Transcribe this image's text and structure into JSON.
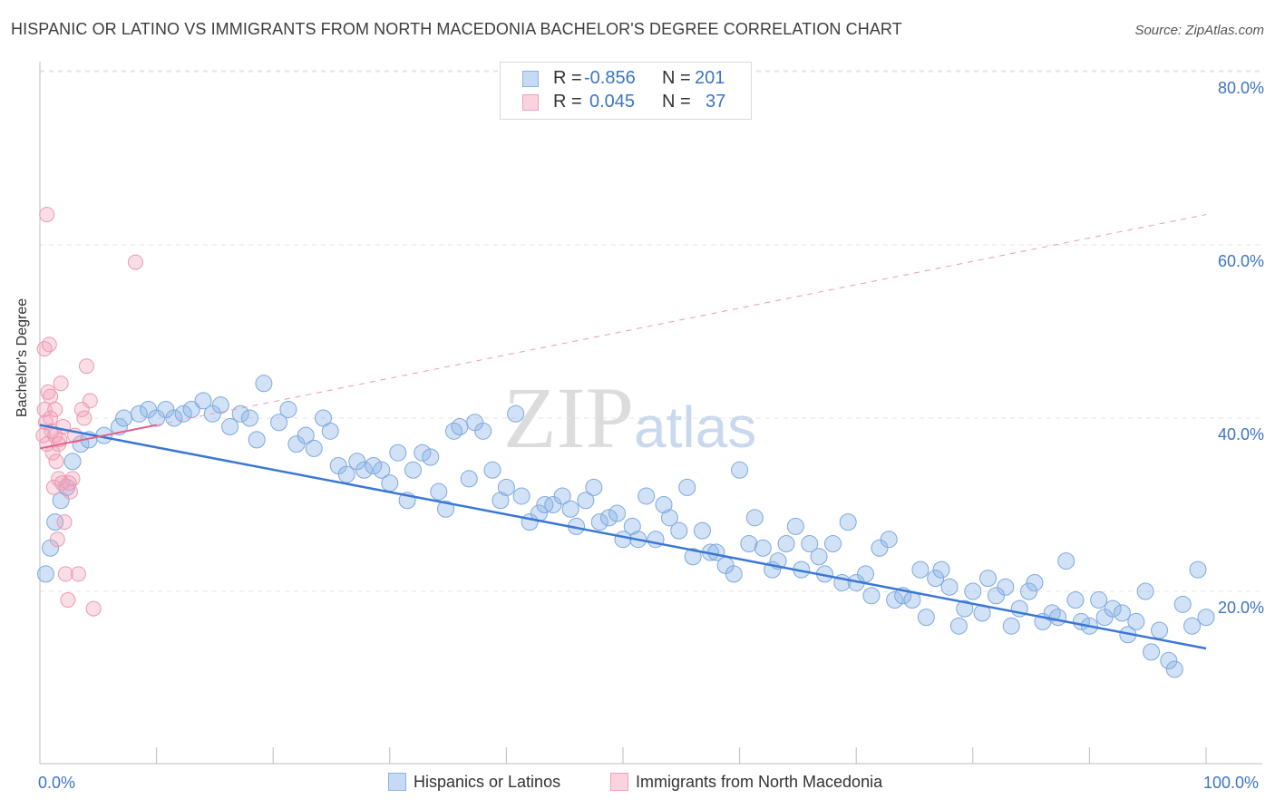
{
  "title": "HISPANIC OR LATINO VS IMMIGRANTS FROM NORTH MACEDONIA BACHELOR'S DEGREE CORRELATION CHART",
  "source": "Source: ZipAtlas.com",
  "watermark": {
    "zip": "ZIP",
    "atlas": "atlas"
  },
  "stats_legend": [
    {
      "r_label": "R =",
      "r_value": "-0.856",
      "n_label": "N =",
      "n_value": "201",
      "color": "#8ab4e8"
    },
    {
      "r_label": "R =",
      "r_value": "0.045",
      "n_label": "N =",
      "n_value": "37",
      "color": "#f2a0b8"
    }
  ],
  "chart_data": {
    "type": "scatter",
    "title": "HISPANIC OR LATINO VS IMMIGRANTS FROM NORTH MACEDONIA BACHELOR'S DEGREE CORRELATION CHART",
    "xlabel": "",
    "ylabel": "Bachelor's Degree",
    "xlim": [
      0,
      100
    ],
    "ylim": [
      0,
      85
    ],
    "x_tick_labels": [
      "0.0%",
      "100.0%"
    ],
    "y_tick_labels": [
      "20.0%",
      "40.0%",
      "60.0%",
      "80.0%"
    ],
    "y_ticks": [
      20,
      40,
      60,
      80
    ],
    "grid": true,
    "legend_position": "bottom",
    "series": [
      {
        "name": "Hispanics or Latinos",
        "color": "#8ab4e8",
        "trend": {
          "x": [
            0,
            100
          ],
          "y": [
            39.2,
            13.4
          ]
        },
        "points": [
          [
            0.5,
            22.0
          ],
          [
            0.9,
            25.0
          ],
          [
            1.3,
            28.0
          ],
          [
            1.8,
            30.5
          ],
          [
            2.3,
            32.0
          ],
          [
            2.8,
            35.0
          ],
          [
            3.5,
            37.0
          ],
          [
            4.2,
            37.5
          ],
          [
            5.5,
            38.0
          ],
          [
            6.8,
            39.0
          ],
          [
            7.2,
            40.0
          ],
          [
            8.5,
            40.5
          ],
          [
            9.3,
            41.0
          ],
          [
            10.0,
            40.0
          ],
          [
            10.8,
            41.0
          ],
          [
            11.5,
            40.0
          ],
          [
            12.3,
            40.5
          ],
          [
            13.0,
            41.0
          ],
          [
            14.0,
            42.0
          ],
          [
            14.8,
            40.5
          ],
          [
            15.5,
            41.5
          ],
          [
            16.3,
            39.0
          ],
          [
            17.2,
            40.5
          ],
          [
            18.0,
            40.0
          ],
          [
            18.6,
            37.5
          ],
          [
            19.2,
            44.0
          ],
          [
            20.5,
            39.5
          ],
          [
            21.3,
            41.0
          ],
          [
            22.0,
            37.0
          ],
          [
            22.8,
            38.0
          ],
          [
            23.5,
            36.5
          ],
          [
            24.3,
            40.0
          ],
          [
            24.9,
            38.5
          ],
          [
            25.6,
            34.5
          ],
          [
            26.3,
            33.5
          ],
          [
            27.2,
            35.0
          ],
          [
            27.8,
            34.0
          ],
          [
            28.6,
            34.5
          ],
          [
            29.3,
            34.0
          ],
          [
            30.0,
            32.5
          ],
          [
            30.7,
            36.0
          ],
          [
            31.5,
            30.5
          ],
          [
            32.0,
            34.0
          ],
          [
            32.8,
            36.0
          ],
          [
            33.5,
            35.5
          ],
          [
            34.2,
            31.5
          ],
          [
            34.8,
            29.5
          ],
          [
            35.5,
            38.5
          ],
          [
            36.0,
            39.0
          ],
          [
            36.8,
            33.0
          ],
          [
            37.3,
            39.5
          ],
          [
            38.0,
            38.5
          ],
          [
            38.8,
            34.0
          ],
          [
            39.5,
            30.5
          ],
          [
            40.0,
            32.0
          ],
          [
            40.8,
            40.5
          ],
          [
            41.3,
            31.0
          ],
          [
            42.0,
            28.0
          ],
          [
            42.8,
            29.0
          ],
          [
            43.3,
            30.0
          ],
          [
            44.0,
            30.0
          ],
          [
            44.8,
            31.0
          ],
          [
            45.5,
            29.5
          ],
          [
            46.0,
            27.5
          ],
          [
            46.8,
            30.5
          ],
          [
            47.5,
            32.0
          ],
          [
            48.0,
            28.0
          ],
          [
            48.8,
            28.5
          ],
          [
            49.5,
            29.0
          ],
          [
            50.0,
            26.0
          ],
          [
            50.8,
            27.5
          ],
          [
            51.3,
            26.0
          ],
          [
            52.0,
            31.0
          ],
          [
            52.8,
            26.0
          ],
          [
            53.5,
            30.0
          ],
          [
            54.0,
            28.5
          ],
          [
            54.8,
            27.0
          ],
          [
            55.5,
            32.0
          ],
          [
            56.0,
            24.0
          ],
          [
            56.8,
            27.0
          ],
          [
            57.5,
            24.5
          ],
          [
            58.0,
            24.5
          ],
          [
            58.8,
            23.0
          ],
          [
            59.5,
            22.0
          ],
          [
            60.0,
            34.0
          ],
          [
            60.8,
            25.5
          ],
          [
            61.3,
            28.5
          ],
          [
            62.0,
            25.0
          ],
          [
            62.8,
            22.5
          ],
          [
            63.3,
            23.5
          ],
          [
            64.0,
            25.5
          ],
          [
            64.8,
            27.5
          ],
          [
            65.3,
            22.5
          ],
          [
            66.0,
            25.5
          ],
          [
            66.8,
            24.0
          ],
          [
            67.3,
            22.0
          ],
          [
            68.0,
            25.5
          ],
          [
            68.8,
            21.0
          ],
          [
            69.3,
            28.0
          ],
          [
            70.0,
            21.0
          ],
          [
            70.8,
            22.0
          ],
          [
            71.3,
            19.5
          ],
          [
            72.0,
            25.0
          ],
          [
            72.8,
            26.0
          ],
          [
            73.3,
            19.0
          ],
          [
            74.0,
            19.5
          ],
          [
            74.8,
            19.0
          ],
          [
            75.5,
            22.5
          ],
          [
            76.0,
            17.0
          ],
          [
            76.8,
            21.5
          ],
          [
            77.3,
            22.5
          ],
          [
            78.0,
            20.5
          ],
          [
            78.8,
            16.0
          ],
          [
            79.3,
            18.0
          ],
          [
            80.0,
            20.0
          ],
          [
            80.8,
            17.5
          ],
          [
            81.3,
            21.5
          ],
          [
            82.0,
            19.5
          ],
          [
            82.8,
            20.5
          ],
          [
            83.3,
            16.0
          ],
          [
            84.0,
            18.0
          ],
          [
            84.8,
            20.0
          ],
          [
            85.3,
            21.0
          ],
          [
            86.0,
            16.5
          ],
          [
            86.8,
            17.5
          ],
          [
            87.3,
            17.0
          ],
          [
            88.0,
            23.5
          ],
          [
            88.8,
            19.0
          ],
          [
            89.3,
            16.5
          ],
          [
            90.0,
            16.0
          ],
          [
            90.8,
            19.0
          ],
          [
            91.3,
            17.0
          ],
          [
            92.0,
            18.0
          ],
          [
            92.8,
            17.5
          ],
          [
            93.3,
            15.0
          ],
          [
            94.0,
            16.5
          ],
          [
            94.8,
            20.0
          ],
          [
            95.3,
            13.0
          ],
          [
            96.0,
            15.5
          ],
          [
            96.8,
            12.0
          ],
          [
            97.3,
            11.0
          ],
          [
            98.0,
            18.5
          ],
          [
            98.8,
            16.0
          ],
          [
            99.3,
            22.5
          ],
          [
            100.0,
            17.0
          ]
        ]
      },
      {
        "name": "Immigrants from North Macedonia",
        "color": "#f2a0b8",
        "trend": {
          "x": [
            0,
            100
          ],
          "y": [
            36.5,
            63.5
          ]
        },
        "trend_solid_xmax": 10,
        "points": [
          [
            0.3,
            38.0
          ],
          [
            0.4,
            41.0
          ],
          [
            0.5,
            39.5
          ],
          [
            0.6,
            37.0
          ],
          [
            0.7,
            43.0
          ],
          [
            0.8,
            48.5
          ],
          [
            0.9,
            40.0
          ],
          [
            1.0,
            38.5
          ],
          [
            1.1,
            36.0
          ],
          [
            1.2,
            32.0
          ],
          [
            1.3,
            41.0
          ],
          [
            1.4,
            35.0
          ],
          [
            1.5,
            26.0
          ],
          [
            1.6,
            33.0
          ],
          [
            1.7,
            37.5
          ],
          [
            1.8,
            44.0
          ],
          [
            1.9,
            32.5
          ],
          [
            2.0,
            39.0
          ],
          [
            2.1,
            28.0
          ],
          [
            2.2,
            22.0
          ],
          [
            2.4,
            19.0
          ],
          [
            2.6,
            31.5
          ],
          [
            2.8,
            33.0
          ],
          [
            3.0,
            38.0
          ],
          [
            3.3,
            22.0
          ],
          [
            3.6,
            41.0
          ],
          [
            4.0,
            46.0
          ],
          [
            4.3,
            42.0
          ],
          [
            4.6,
            18.0
          ],
          [
            0.6,
            63.5
          ],
          [
            8.2,
            58.0
          ],
          [
            0.4,
            48.0
          ],
          [
            0.9,
            42.5
          ],
          [
            1.3,
            38.0
          ],
          [
            2.5,
            32.5
          ],
          [
            1.6,
            37.0
          ],
          [
            3.8,
            40.0
          ]
        ]
      }
    ]
  },
  "bottom_legend": [
    {
      "label": "Hispanics or Latinos",
      "color": "#8ab4e8"
    },
    {
      "label": "Immigrants from North Macedonia",
      "color": "#f2a0b8"
    }
  ]
}
